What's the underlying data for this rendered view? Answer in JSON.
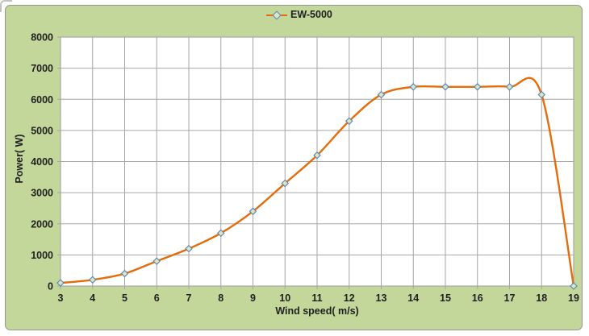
{
  "legend": {
    "label": "EW-5000"
  },
  "colors": {
    "chart_background": "#c4d79b",
    "chart_border": "#949494",
    "plot_background": "#ffffff",
    "gridline": "#a6a6a6",
    "axis_line": "#a6a6a6",
    "series_line": "#e46c0a",
    "marker_fill": "#dae5c4",
    "marker_border": "#5a82b4",
    "text": "#1f1f1f"
  },
  "chart_data": {
    "type": "line",
    "title": "",
    "xlabel": "Wind speed( m/s)",
    "ylabel": "Power( W)",
    "x": [
      3,
      4,
      5,
      6,
      7,
      8,
      9,
      10,
      11,
      12,
      13,
      14,
      15,
      16,
      17,
      18,
      19
    ],
    "series": [
      {
        "name": "EW-5000",
        "values": [
          100,
          200,
          400,
          800,
          1200,
          1700,
          2400,
          3300,
          4200,
          5300,
          6150,
          6400,
          6400,
          6400,
          6400,
          6150,
          0
        ]
      }
    ],
    "xlim": [
      3,
      19
    ],
    "ylim": [
      0,
      8000
    ],
    "x_ticks": [
      3,
      4,
      5,
      6,
      7,
      8,
      9,
      10,
      11,
      12,
      13,
      14,
      15,
      16,
      17,
      18,
      19
    ],
    "y_ticks": [
      0,
      1000,
      2000,
      3000,
      4000,
      5000,
      6000,
      7000,
      8000
    ],
    "grid": true,
    "smooth": true,
    "marker": "diamond",
    "legend_position": "top-center"
  }
}
